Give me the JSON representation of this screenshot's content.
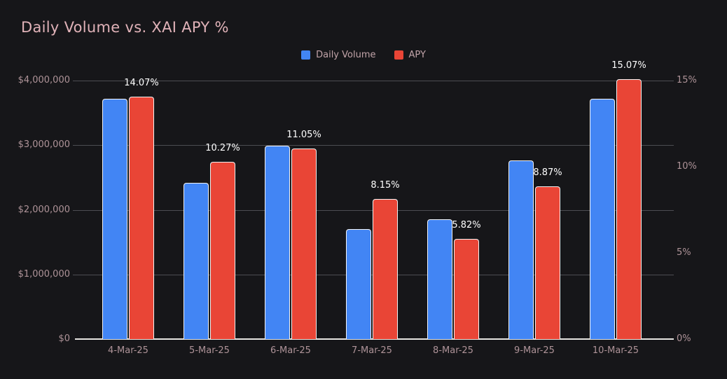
{
  "title": "Daily Volume vs. XAI APY %",
  "legend": [
    {
      "label": "Daily Volume",
      "color": "#4285f4"
    },
    {
      "label": "APY",
      "color": "#e94536"
    }
  ],
  "colors": {
    "background": "#161619",
    "title_text": "#e0b2b8",
    "axis_text": "#ae9398",
    "gridline": "#4c4d52",
    "axis_line": "#e6e4e1",
    "volume_bar": "#4285f4",
    "apy_bar": "#e94536",
    "bar_border": "#f2f2f2",
    "value_label_text": "#ffffff"
  },
  "chart_data": {
    "type": "bar",
    "title": "Daily Volume vs. XAI APY %",
    "categories": [
      "4-Mar-25",
      "5-Mar-25",
      "6-Mar-25",
      "7-Mar-25",
      "8-Mar-25",
      "9-Mar-25",
      "10-Mar-25"
    ],
    "series": [
      {
        "name": "Daily Volume",
        "axis": "left",
        "color": "#4285f4",
        "values": [
          3720000,
          2420000,
          2990000,
          1700000,
          1850000,
          2760000,
          3720000
        ]
      },
      {
        "name": "APY",
        "axis": "right",
        "color": "#e94536",
        "values": [
          14.07,
          10.27,
          11.05,
          8.15,
          5.82,
          8.87,
          15.07
        ],
        "labels": [
          "14.07%",
          "10.27%",
          "11.05%",
          "8.15%",
          "5.82%",
          "8.87%",
          "15.07%"
        ]
      }
    ],
    "left_axis": {
      "min": 0,
      "max": 4000000,
      "tick_values": [
        0,
        1000000,
        2000000,
        3000000,
        4000000
      ],
      "tick_labels": [
        "$0",
        "$1,000,000",
        "$2,000,000",
        "$3,000,000",
        "$4,000,000"
      ]
    },
    "right_axis": {
      "min": 0,
      "max": 15,
      "tick_values": [
        0,
        5,
        10,
        15
      ],
      "tick_labels": [
        "0%",
        "5%",
        "10%",
        "15%"
      ]
    },
    "grid": true,
    "legend_position": "top-center"
  }
}
